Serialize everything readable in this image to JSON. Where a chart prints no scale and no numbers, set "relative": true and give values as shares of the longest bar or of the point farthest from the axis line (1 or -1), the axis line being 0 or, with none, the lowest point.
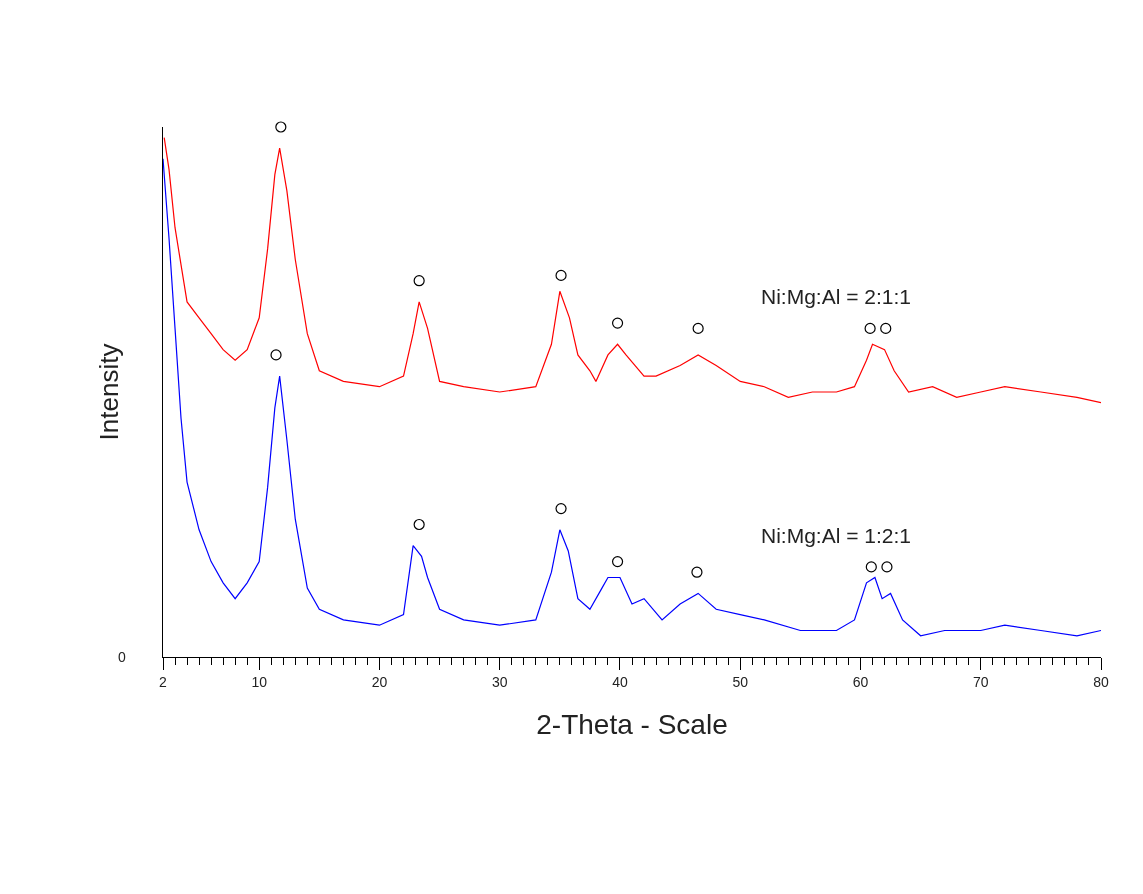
{
  "chart_data": {
    "type": "line",
    "relative": true,
    "xlabel": "2-Theta - Scale",
    "ylabel": "Intensity",
    "annotations": [
      "0"
    ],
    "xlim": [
      2,
      80
    ],
    "xticks": [
      2,
      {
        "value": 3,
        "label": null
      },
      {
        "value": 4,
        "label": null
      },
      {
        "value": 5,
        "label": null
      },
      {
        "value": 6,
        "label": null
      },
      {
        "value": 7,
        "label": null
      },
      {
        "value": 8,
        "label": null
      },
      {
        "value": 9,
        "label": null
      },
      10,
      {
        "value": 11,
        "label": null
      },
      {
        "value": 12,
        "label": null
      },
      {
        "value": 13,
        "label": null
      },
      {
        "value": 14,
        "label": null
      },
      {
        "value": 15,
        "label": null
      },
      {
        "value": 16,
        "label": null
      },
      {
        "value": 17,
        "label": null
      },
      {
        "value": 18,
        "label": null
      },
      {
        "value": 19,
        "label": null
      },
      20,
      {
        "value": 21,
        "label": null
      },
      {
        "value": 22,
        "label": null
      },
      {
        "value": 23,
        "label": null
      },
      {
        "value": 24,
        "label": null
      },
      {
        "value": 25,
        "label": null
      },
      {
        "value": 26,
        "label": null
      },
      {
        "value": 27,
        "label": null
      },
      {
        "value": 28,
        "label": null
      },
      {
        "value": 29,
        "label": null
      },
      30,
      {
        "value": 31,
        "label": null
      },
      {
        "value": 32,
        "label": null
      },
      {
        "value": 33,
        "label": null
      },
      {
        "value": 34,
        "label": null
      },
      {
        "value": 35,
        "label": null
      },
      {
        "value": 36,
        "label": null
      },
      {
        "value": 37,
        "label": null
      },
      {
        "value": 38,
        "label": null
      },
      {
        "value": 39,
        "label": null
      },
      40,
      {
        "value": 41,
        "label": null
      },
      {
        "value": 42,
        "label": null
      },
      {
        "value": 43,
        "label": null
      },
      {
        "value": 44,
        "label": null
      },
      {
        "value": 45,
        "label": null
      },
      {
        "value": 46,
        "label": null
      },
      {
        "value": 47,
        "label": null
      },
      {
        "value": 48,
        "label": null
      },
      {
        "value": 49,
        "label": null
      },
      50,
      {
        "value": 51,
        "label": null
      },
      {
        "value": 52,
        "label": null
      },
      {
        "value": 53,
        "label": null
      },
      {
        "value": 54,
        "label": null
      },
      {
        "value": 55,
        "label": null
      },
      {
        "value": 56,
        "label": null
      },
      {
        "value": 57,
        "label": null
      },
      {
        "value": 58,
        "label": null
      },
      {
        "value": 59,
        "label": null
      },
      60,
      {
        "value": 61,
        "label": null
      },
      {
        "value": 62,
        "label": null
      },
      {
        "value": 63,
        "label": null
      },
      {
        "value": 64,
        "label": null
      },
      {
        "value": 65,
        "label": null
      },
      {
        "value": 66,
        "label": null
      },
      {
        "value": 67,
        "label": null
      },
      {
        "value": 68,
        "label": null
      },
      {
        "value": 69,
        "label": null
      },
      70,
      {
        "value": 71,
        "label": null
      },
      {
        "value": 72,
        "label": null
      },
      {
        "value": 73,
        "label": null
      },
      {
        "value": 74,
        "label": null
      },
      {
        "value": 75,
        "label": null
      },
      {
        "value": 76,
        "label": null
      },
      {
        "value": 77,
        "label": null
      },
      {
        "value": 78,
        "label": null
      },
      {
        "value": 79,
        "label": null
      },
      80
    ],
    "legend": false,
    "marker": "none",
    "line_style": "solid",
    "series": [
      {
        "name": "Ni:Mg:Al = 2:1:1",
        "color": "#ff0000",
        "x": [
          2.1,
          2.5,
          3,
          3.5,
          4,
          5,
          6,
          7,
          8,
          9,
          10,
          10.7,
          11.3,
          11.7,
          12.3,
          13,
          14,
          15,
          17,
          20,
          22,
          22.8,
          23.3,
          24,
          25,
          27,
          30,
          33,
          34.3,
          35,
          35.8,
          36.5,
          37.5,
          38,
          39,
          39.8,
          40.5,
          42,
          43,
          45,
          46.5,
          48,
          50,
          52,
          54,
          56,
          58,
          59.5,
          60.5,
          61,
          62,
          62.8,
          64,
          66,
          68,
          70,
          72,
          75,
          78,
          80
        ],
        "values": [
          0.98,
          0.92,
          0.81,
          0.74,
          0.67,
          0.64,
          0.61,
          0.58,
          0.56,
          0.58,
          0.64,
          0.77,
          0.91,
          0.96,
          0.88,
          0.75,
          0.61,
          0.54,
          0.52,
          0.51,
          0.53,
          0.61,
          0.67,
          0.62,
          0.52,
          0.51,
          0.5,
          0.51,
          0.59,
          0.69,
          0.64,
          0.57,
          0.54,
          0.52,
          0.57,
          0.59,
          0.57,
          0.53,
          0.53,
          0.55,
          0.57,
          0.55,
          0.52,
          0.51,
          0.49,
          0.5,
          0.5,
          0.51,
          0.56,
          0.59,
          0.58,
          0.54,
          0.5,
          0.51,
          0.49,
          0.5,
          0.51,
          0.5,
          0.49,
          0.48
        ]
      },
      {
        "name": "Ni:Mg:Al = 1:2:1",
        "color": "#0000ff",
        "x": [
          2,
          2.5,
          3,
          3.5,
          4,
          5,
          6,
          7,
          8,
          9,
          10,
          10.7,
          11.3,
          11.7,
          12.3,
          13,
          14,
          15,
          17,
          20,
          22,
          22.8,
          23.5,
          24,
          25,
          27,
          30,
          33,
          34.3,
          35,
          35.7,
          36.5,
          37.5,
          38.5,
          39,
          40,
          41,
          42,
          43.5,
          45,
          46.5,
          48,
          50,
          52,
          55,
          58,
          59.5,
          60.5,
          61.2,
          61.8,
          62.5,
          63.5,
          65,
          67,
          70,
          72,
          75,
          78,
          80
        ],
        "values": [
          0.94,
          0.79,
          0.62,
          0.45,
          0.33,
          0.24,
          0.18,
          0.14,
          0.11,
          0.14,
          0.18,
          0.32,
          0.47,
          0.53,
          0.41,
          0.26,
          0.13,
          0.09,
          0.07,
          0.06,
          0.08,
          0.21,
          0.19,
          0.15,
          0.09,
          0.07,
          0.06,
          0.07,
          0.16,
          0.24,
          0.2,
          0.11,
          0.09,
          0.13,
          0.15,
          0.15,
          0.1,
          0.11,
          0.07,
          0.1,
          0.12,
          0.09,
          0.08,
          0.07,
          0.05,
          0.05,
          0.07,
          0.14,
          0.15,
          0.11,
          0.12,
          0.07,
          0.04,
          0.05,
          0.05,
          0.06,
          0.05,
          0.04,
          0.05
        ]
      },
      {
        "type": "scatter",
        "marker": "circle",
        "color": "#000000",
        "x": [
          11.8,
          23.3,
          35.1,
          39.8,
          46.5,
          60.8,
          62.1,
          11.4,
          23.3,
          35.1,
          39.8,
          46.4,
          60.9,
          62.2
        ],
        "values": [
          1.0,
          0.71,
          0.72,
          0.63,
          0.62,
          0.62,
          0.62,
          0.57,
          0.25,
          0.28,
          0.18,
          0.16,
          0.17,
          0.17
        ]
      }
    ]
  }
}
